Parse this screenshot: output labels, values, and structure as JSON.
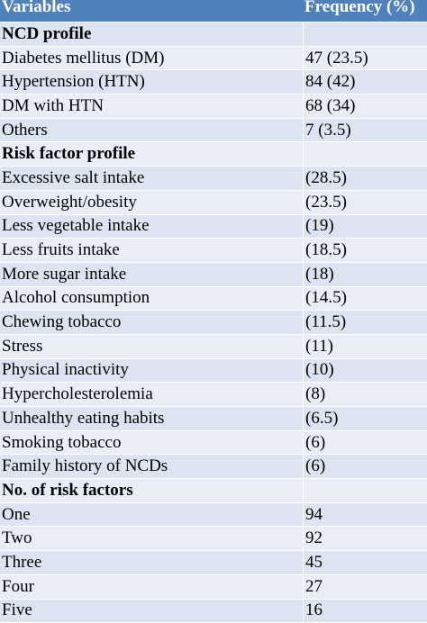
{
  "header": {
    "variables": "Variables",
    "frequency": "Frequency (%)"
  },
  "rows": [
    {
      "label": "NCD profile",
      "value": "",
      "section": true
    },
    {
      "label": "Diabetes mellitus (DM)",
      "value": "47 (23.5)"
    },
    {
      "label": "Hypertension (HTN)",
      "value": "84 (42)"
    },
    {
      "label": "DM with HTN",
      "value": "68 (34)"
    },
    {
      "label": "Others",
      "value": "7 (3.5)"
    },
    {
      "label": "Risk factor profile",
      "value": "",
      "section": true
    },
    {
      "label": "Excessive salt intake",
      "value": "(28.5)"
    },
    {
      "label": "Overweight/obesity",
      "value": "(23.5)"
    },
    {
      "label": "Less vegetable intake",
      "value": "(19)"
    },
    {
      "label": "Less fruits intake",
      "value": "(18.5)"
    },
    {
      "label": "More sugar intake",
      "value": "(18)"
    },
    {
      "label": "Alcohol consumption",
      "value": "(14.5)"
    },
    {
      "label": "Chewing tobacco",
      "value": "(11.5)"
    },
    {
      "label": "Stress",
      "value": "(11)"
    },
    {
      "label": "Physical inactivity",
      "value": "(10)"
    },
    {
      "label": "Hypercholesterolemia",
      "value": "(8)"
    },
    {
      "label": "Unhealthy eating habits",
      "value": "(6.5)"
    },
    {
      "label": "Smoking tobacco",
      "value": "(6)"
    },
    {
      "label": "Family history of NCDs",
      "value": "(6)"
    },
    {
      "label": "No. of risk factors",
      "value": "",
      "section": true
    },
    {
      "label": "One",
      "value": "94"
    },
    {
      "label": "Two",
      "value": "92"
    },
    {
      "label": "Three",
      "value": "45"
    },
    {
      "label": "Four",
      "value": "27"
    },
    {
      "label": "Five",
      "value": "16"
    }
  ],
  "colors": {
    "header_bg": "#4f81bd",
    "row_alt": "#dbe4f0",
    "row_plain": "#e9eef6"
  }
}
